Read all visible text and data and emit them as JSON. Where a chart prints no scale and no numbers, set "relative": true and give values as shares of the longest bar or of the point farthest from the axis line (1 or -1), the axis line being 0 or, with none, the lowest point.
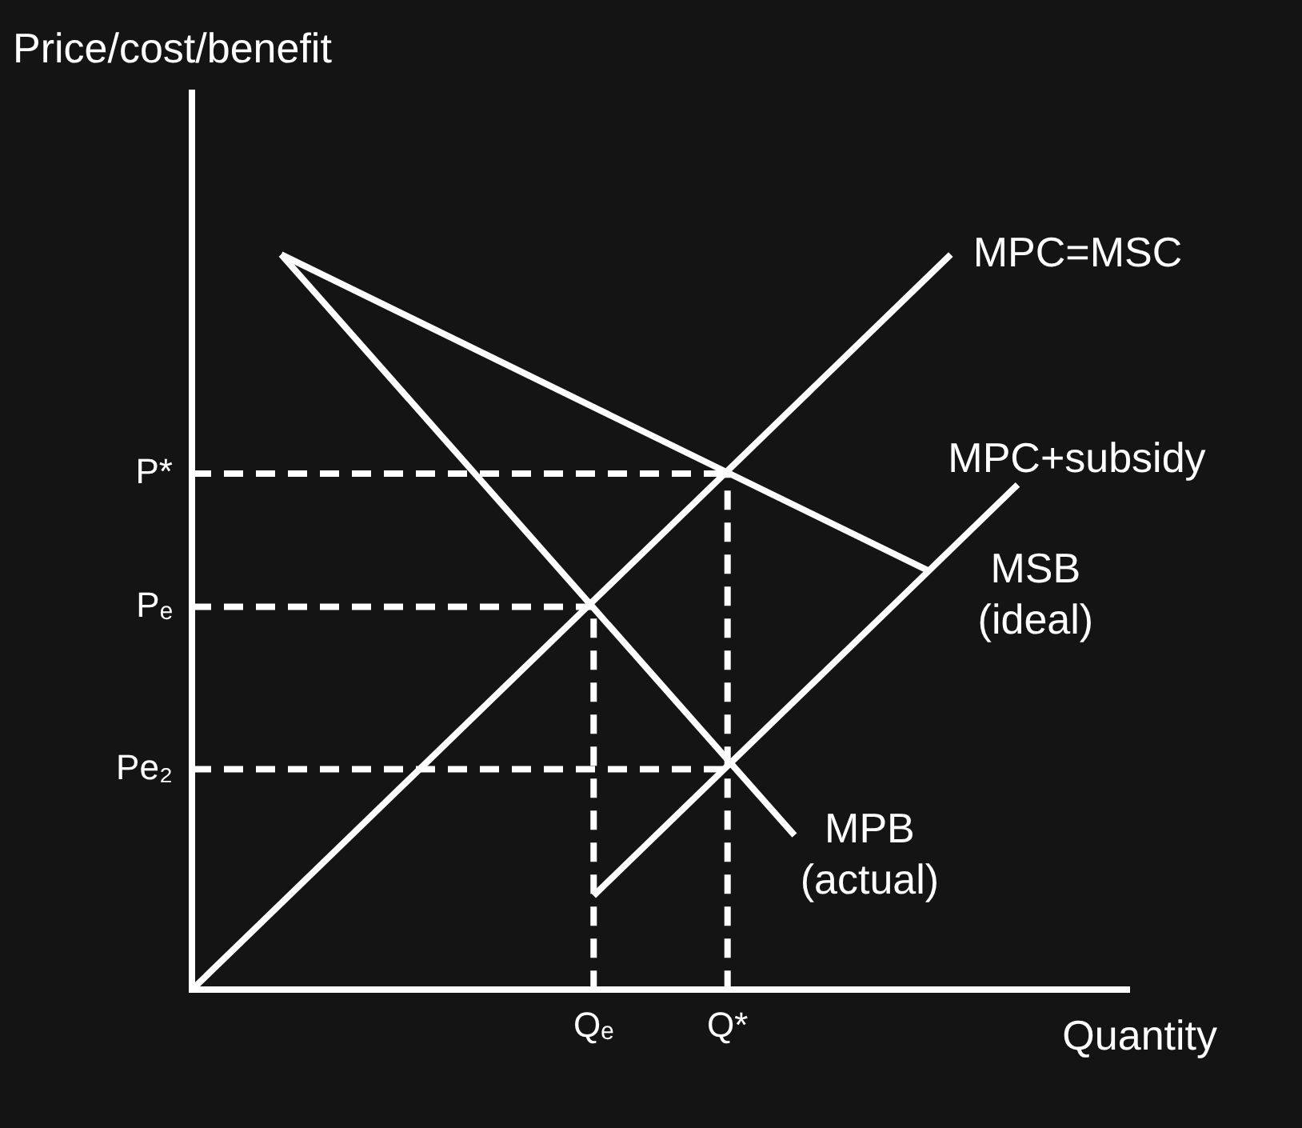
{
  "chart_data": {
    "type": "line",
    "relative": true,
    "xlabel": "Quantity",
    "ylabel": "Price/cost/benefit",
    "legend": false,
    "marker": "none",
    "categories": [
      null,
      null,
      null,
      null,
      null,
      null,
      null,
      null,
      null,
      null,
      null,
      null,
      null,
      null,
      null,
      null,
      null,
      null,
      "Qₑ",
      null,
      null,
      null,
      null,
      null,
      "Q*",
      null,
      null,
      null,
      null,
      null,
      null,
      null,
      null,
      null,
      null,
      null,
      null,
      null,
      null,
      null,
      null,
      null,
      null
    ],
    "series": [
      {
        "name": "MPC=MSC",
        "color": "#ffffff",
        "values": [
          0,
          null,
          null,
          null,
          null,
          null,
          null,
          null,
          null,
          null,
          null,
          null,
          null,
          null,
          null,
          null,
          null,
          null,
          null,
          null,
          null,
          null,
          null,
          null,
          null,
          null,
          null,
          null,
          null,
          null,
          null,
          null,
          null,
          null,
          1,
          null,
          null,
          null,
          null,
          null,
          null,
          null,
          null
        ]
      },
      {
        "name": "MSB (ideal)",
        "color": "#ffffff",
        "values": [
          null,
          null,
          null,
          null,
          1,
          null,
          null,
          null,
          null,
          null,
          null,
          null,
          null,
          null,
          null,
          null,
          null,
          null,
          null,
          null,
          null,
          null,
          null,
          null,
          null,
          null,
          null,
          null,
          null,
          null,
          null,
          null,
          null,
          0.57,
          null,
          null,
          null,
          null,
          null,
          null,
          null,
          null,
          null
        ]
      },
      {
        "name": "MPB (actual)",
        "color": "#ffffff",
        "values": [
          null,
          null,
          null,
          null,
          1,
          null,
          null,
          null,
          null,
          null,
          null,
          null,
          null,
          null,
          null,
          null,
          null,
          null,
          null,
          null,
          null,
          null,
          null,
          null,
          null,
          null,
          null,
          0.21,
          null,
          null,
          null,
          null,
          null,
          null,
          null,
          null,
          null,
          null,
          null,
          null,
          null,
          null,
          null
        ]
      },
      {
        "name": "MPC+subsidy",
        "color": "#ffffff",
        "values": [
          null,
          null,
          null,
          null,
          null,
          null,
          null,
          null,
          null,
          null,
          null,
          null,
          null,
          null,
          null,
          null,
          null,
          null,
          0.128,
          null,
          null,
          null,
          null,
          null,
          null,
          null,
          null,
          null,
          null,
          null,
          null,
          null,
          null,
          null,
          null,
          null,
          null,
          0.687,
          null,
          null,
          null,
          null,
          null
        ]
      }
    ],
    "ref_lines": [
      {
        "axis": "y",
        "value": 0.702,
        "label": "P*",
        "color": "#ffffff",
        "line_style": "dashed"
      },
      {
        "axis": "y",
        "value": 0.521,
        "label": "Pₑ",
        "color": "#ffffff",
        "line_style": "dashed"
      },
      {
        "axis": "y",
        "value": 0.3,
        "label": "Pe₂",
        "color": "#ffffff",
        "line_style": "dashed"
      },
      {
        "axis": "x",
        "value": "Qₑ",
        "color": "#ffffff",
        "line_style": "dashed"
      },
      {
        "axis": "x",
        "value": "Q*",
        "color": "#ffffff",
        "line_style": "dashed"
      }
    ]
  }
}
